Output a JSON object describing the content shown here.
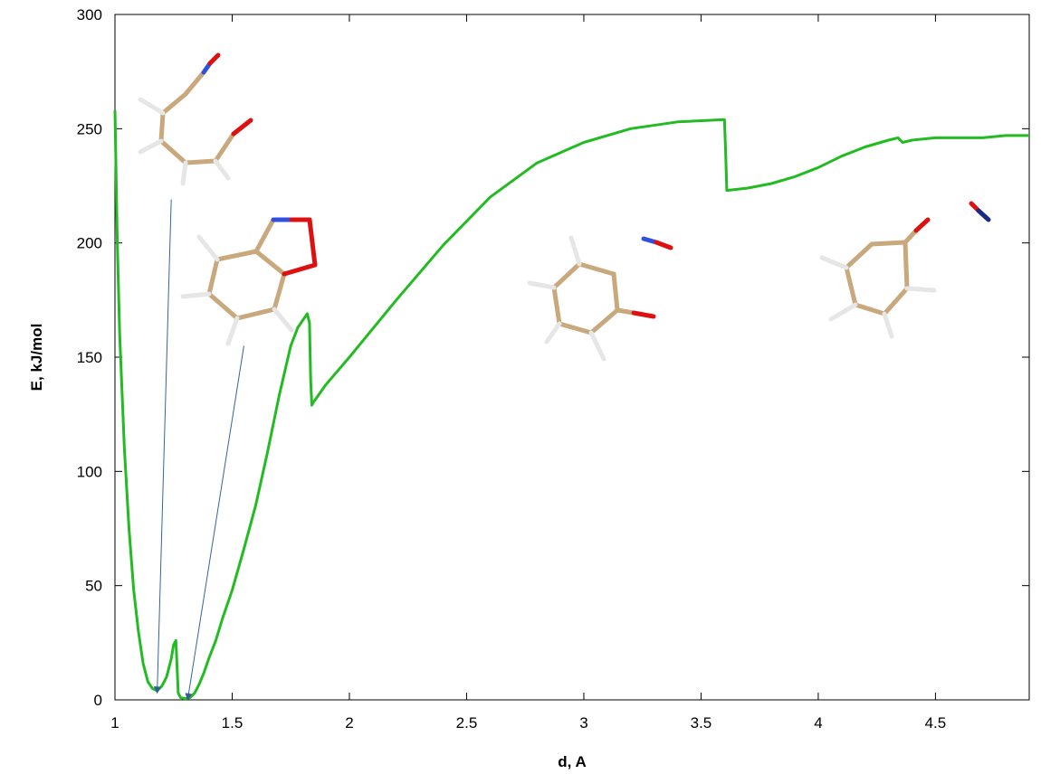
{
  "chart_data": {
    "type": "line",
    "title": "",
    "xlabel": "d, A",
    "ylabel": "E, kJ/mol",
    "xlim": [
      1.0,
      4.9
    ],
    "ylim": [
      0,
      300
    ],
    "xticks": [
      1,
      1.5,
      2,
      2.5,
      3,
      3.5,
      4,
      4.5
    ],
    "xtick_labels": [
      "1",
      "1.5",
      "2",
      "2.5",
      "3",
      "3.5",
      "4",
      "4.5"
    ],
    "yticks": [
      0,
      50,
      100,
      150,
      200,
      250,
      300
    ],
    "ytick_labels": [
      "0",
      "50",
      "100",
      "150",
      "200",
      "250",
      "300"
    ],
    "grid": false,
    "legend": "none",
    "line_color": "#22bb22",
    "series": [
      {
        "x": [
          1.0,
          1.01,
          1.02,
          1.04,
          1.06,
          1.08,
          1.1,
          1.12,
          1.14,
          1.16,
          1.18,
          1.2,
          1.22,
          1.24,
          1.25,
          1.26,
          1.27,
          1.28,
          1.3,
          1.32,
          1.34,
          1.36,
          1.38,
          1.4,
          1.43,
          1.46,
          1.5,
          1.55,
          1.6,
          1.65,
          1.7,
          1.75,
          1.78,
          1.8,
          1.82,
          1.83,
          1.835,
          1.84,
          1.845,
          1.9,
          2.0,
          2.2,
          2.4,
          2.6,
          2.8,
          3.0,
          3.2,
          3.4,
          3.6,
          3.605,
          3.61,
          3.7,
          3.8,
          3.9,
          4.0,
          4.1,
          4.2,
          4.3,
          4.34,
          4.36,
          4.4,
          4.5,
          4.6,
          4.7,
          4.8,
          4.9
        ],
        "y": [
          258,
          200,
          160,
          110,
          75,
          48,
          30,
          16,
          8,
          5,
          4,
          6,
          10,
          18,
          24,
          26,
          3,
          1,
          0.5,
          1,
          3,
          7,
          12,
          18,
          26,
          36,
          48,
          66,
          85,
          108,
          133,
          155,
          163,
          166,
          169,
          165,
          140,
          129,
          130,
          138,
          150,
          175,
          199,
          220,
          235,
          244,
          250,
          253,
          254,
          240,
          223,
          224,
          226,
          229,
          233,
          238,
          242,
          245,
          246,
          244,
          245,
          246,
          246,
          246,
          247,
          247
        ]
      }
    ],
    "annotations": [
      {
        "type": "arrow",
        "from": [
          1.24,
          219
        ],
        "to": [
          1.18,
          3
        ]
      },
      {
        "type": "arrow",
        "from": [
          1.55,
          155
        ],
        "to": [
          1.31,
          0
        ]
      }
    ]
  },
  "icons": [
    "chain-molecule-icon",
    "benzisoxazole-icon",
    "phenoxy-no-icon",
    "cyclopentadienone-no-icon"
  ],
  "colors": {
    "carbon": "#c8a87c",
    "hydrogen": "#e6e6e6",
    "nitrogen": "#3050e0",
    "oxygen": "#dd1111",
    "arrow": "#336699"
  }
}
